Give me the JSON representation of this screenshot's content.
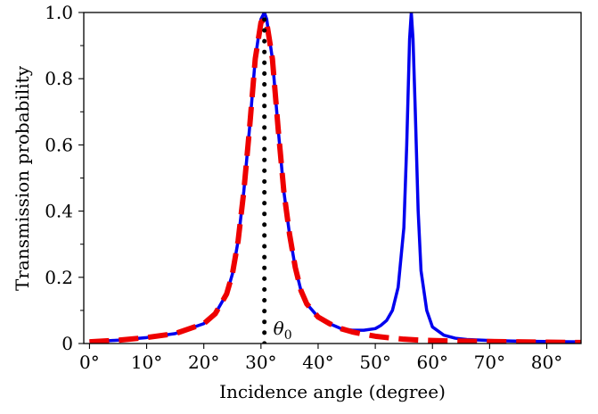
{
  "chart_data": {
    "type": "line",
    "xlabel": "Incidence angle (degree)",
    "ylabel": "Transmission probability",
    "xlim": [
      -1,
      86
    ],
    "ylim": [
      0,
      1.0
    ],
    "x_ticks": [
      0,
      10,
      20,
      30,
      40,
      50,
      60,
      70,
      80
    ],
    "x_tick_labels": [
      "0°",
      "10°",
      "20°",
      "30°",
      "40°",
      "50°",
      "60°",
      "70°",
      "80°"
    ],
    "y_ticks": [
      0,
      0.2,
      0.4,
      0.6,
      0.8,
      1.0
    ],
    "y_tick_labels": [
      "0",
      "0.2",
      "0.4",
      "0.6",
      "0.8",
      "1.0"
    ],
    "grid": false,
    "annotation": {
      "text": "θ",
      "subscript": "0",
      "x": 30.6
    },
    "series": [
      {
        "style": "solid",
        "color": "#0000ee",
        "x": [
          0,
          5,
          10,
          15,
          20,
          22,
          24,
          25,
          26,
          27,
          28,
          29,
          30,
          30.6,
          31,
          32,
          33,
          34,
          35,
          36,
          37,
          38,
          40,
          42,
          44,
          46,
          48,
          50,
          51,
          52,
          53,
          54,
          55,
          55.5,
          56,
          56.3,
          56.6,
          57,
          57.5,
          58,
          59,
          60,
          62,
          64,
          66,
          70,
          75,
          80,
          86
        ],
        "y": [
          0.005,
          0.01,
          0.018,
          0.03,
          0.06,
          0.09,
          0.15,
          0.21,
          0.31,
          0.46,
          0.65,
          0.86,
          0.98,
          1.0,
          0.98,
          0.86,
          0.65,
          0.46,
          0.33,
          0.23,
          0.16,
          0.12,
          0.08,
          0.06,
          0.045,
          0.04,
          0.04,
          0.045,
          0.055,
          0.07,
          0.1,
          0.17,
          0.35,
          0.6,
          0.92,
          1.0,
          0.92,
          0.7,
          0.4,
          0.22,
          0.1,
          0.05,
          0.025,
          0.016,
          0.012,
          0.009,
          0.007,
          0.006,
          0.005
        ]
      },
      {
        "style": "dashed",
        "color": "#ee0000",
        "x": [
          0,
          5,
          10,
          15,
          20,
          22,
          24,
          25,
          26,
          27,
          28,
          29,
          30,
          30.6,
          31,
          32,
          33,
          34,
          35,
          36,
          37,
          38,
          40,
          42,
          44,
          46,
          48,
          50,
          52,
          55,
          58,
          62,
          66,
          70,
          75,
          80,
          86
        ],
        "y": [
          0.005,
          0.01,
          0.018,
          0.03,
          0.06,
          0.09,
          0.15,
          0.21,
          0.31,
          0.46,
          0.65,
          0.86,
          0.97,
          0.98,
          0.97,
          0.86,
          0.65,
          0.46,
          0.33,
          0.23,
          0.16,
          0.12,
          0.08,
          0.06,
          0.045,
          0.035,
          0.028,
          0.022,
          0.018,
          0.013,
          0.01,
          0.008,
          0.007,
          0.006,
          0.005,
          0.004,
          0.003
        ]
      },
      {
        "style": "dotted",
        "color": "#000000",
        "x": [
          30.6,
          30.6
        ],
        "y": [
          0,
          1.0
        ]
      }
    ]
  }
}
